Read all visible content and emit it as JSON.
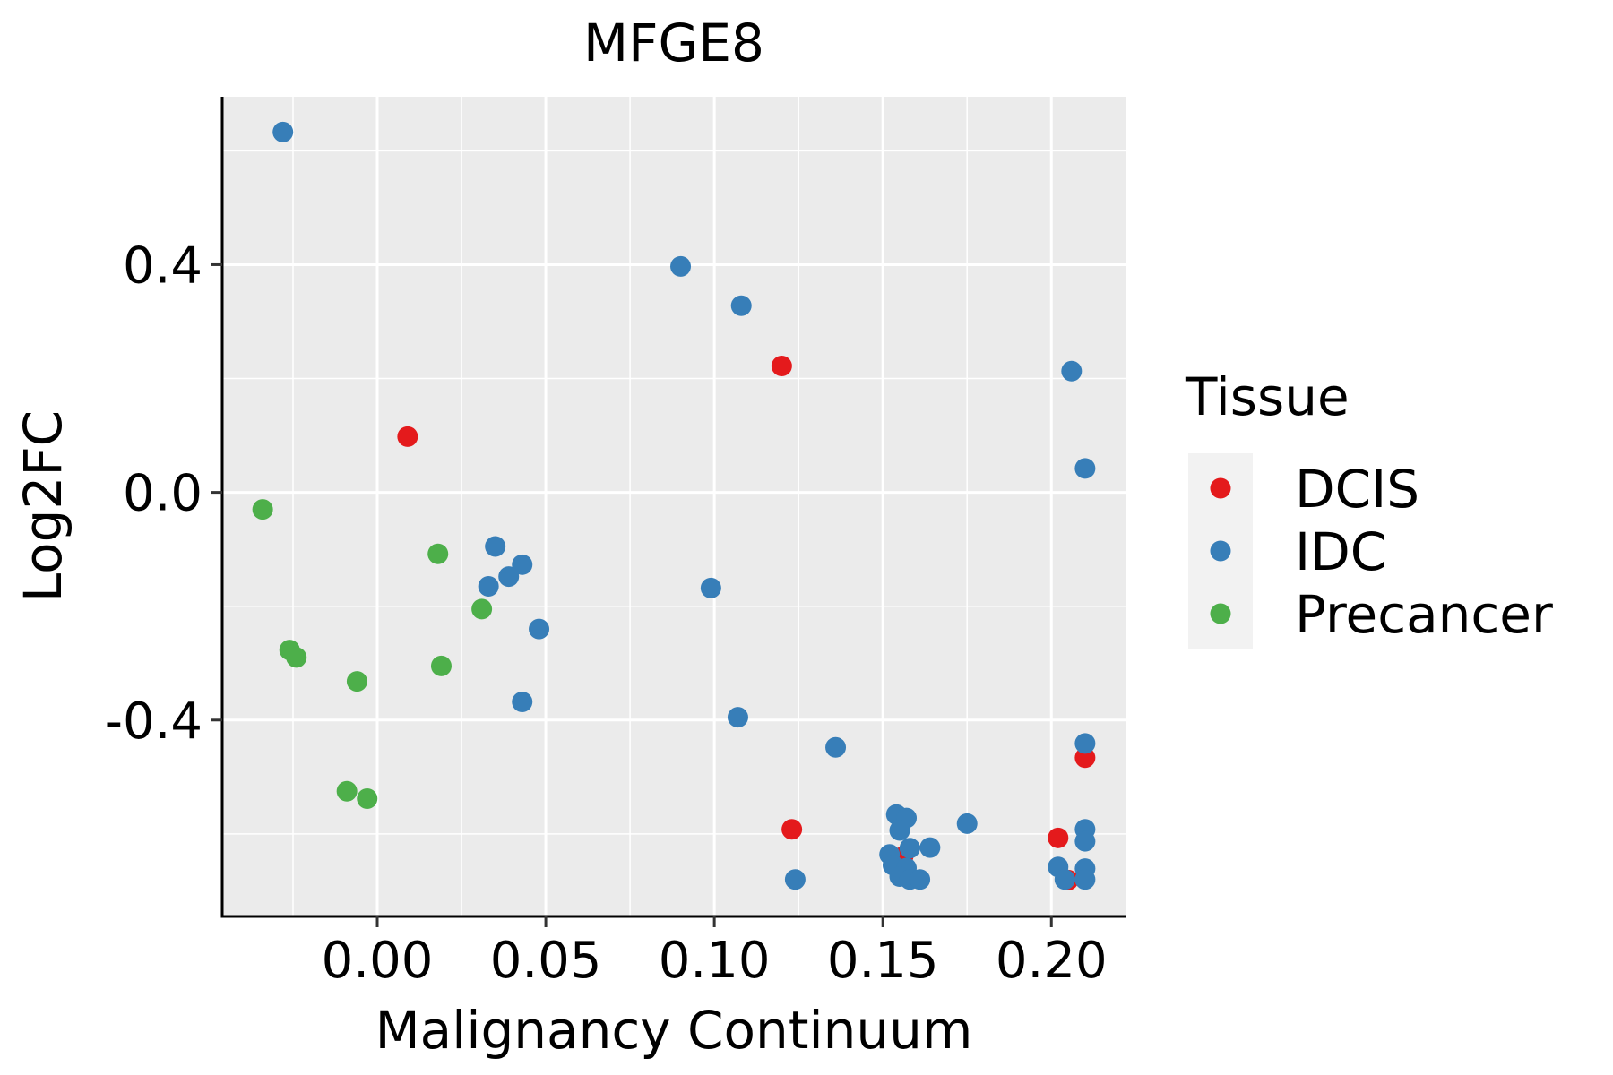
{
  "chart_data": {
    "type": "scatter",
    "title": "MFGE8",
    "xlabel": "Malignancy Continuum",
    "ylabel": "Log2FC",
    "xlim": [
      -0.046,
      0.222
    ],
    "ylim": [
      -0.745,
      0.695
    ],
    "x_ticks": [
      0.0,
      0.05,
      0.1,
      0.15,
      0.2
    ],
    "x_tick_labels": [
      "0.00",
      "0.05",
      "0.10",
      "0.15",
      "0.20"
    ],
    "y_ticks": [
      -0.4,
      0.0,
      0.4
    ],
    "y_tick_labels": [
      "-0.4",
      "0.0",
      "0.4"
    ],
    "grid": true,
    "legend": {
      "title": "Tissue",
      "position": "right",
      "entries": [
        "DCIS",
        "IDC",
        "Precancer"
      ]
    },
    "series": [
      {
        "name": "DCIS",
        "color": "#E41A1C",
        "points": [
          [
            0.009,
            0.098
          ],
          [
            0.12,
            0.222
          ],
          [
            0.123,
            -0.592
          ],
          [
            0.156,
            -0.64
          ],
          [
            0.202,
            -0.607
          ],
          [
            0.205,
            -0.681
          ],
          [
            0.21,
            -0.466
          ]
        ]
      },
      {
        "name": "IDC",
        "color": "#377EB8",
        "points": [
          [
            -0.028,
            0.633
          ],
          [
            0.09,
            0.397
          ],
          [
            0.108,
            0.328
          ],
          [
            0.206,
            0.213
          ],
          [
            0.21,
            0.042
          ],
          [
            0.035,
            -0.095
          ],
          [
            0.033,
            -0.165
          ],
          [
            0.039,
            -0.148
          ],
          [
            0.043,
            -0.127
          ],
          [
            0.048,
            -0.24
          ],
          [
            0.099,
            -0.168
          ],
          [
            0.043,
            -0.368
          ],
          [
            0.107,
            -0.395
          ],
          [
            0.136,
            -0.448
          ],
          [
            0.21,
            -0.441
          ],
          [
            0.154,
            -0.566
          ],
          [
            0.157,
            -0.572
          ],
          [
            0.155,
            -0.594
          ],
          [
            0.158,
            -0.625
          ],
          [
            0.152,
            -0.636
          ],
          [
            0.164,
            -0.624
          ],
          [
            0.175,
            -0.582
          ],
          [
            0.153,
            -0.655
          ],
          [
            0.157,
            -0.66
          ],
          [
            0.155,
            -0.675
          ],
          [
            0.158,
            -0.68
          ],
          [
            0.161,
            -0.68
          ],
          [
            0.124,
            -0.68
          ],
          [
            0.21,
            -0.592
          ],
          [
            0.21,
            -0.613
          ],
          [
            0.202,
            -0.658
          ],
          [
            0.21,
            -0.661
          ],
          [
            0.204,
            -0.68
          ],
          [
            0.21,
            -0.68
          ]
        ]
      },
      {
        "name": "Precancer",
        "color": "#4DAF4A",
        "points": [
          [
            -0.034,
            -0.03
          ],
          [
            0.018,
            -0.108
          ],
          [
            0.031,
            -0.205
          ],
          [
            -0.026,
            -0.277
          ],
          [
            -0.024,
            -0.29
          ],
          [
            0.019,
            -0.305
          ],
          [
            -0.006,
            -0.332
          ],
          [
            -0.009,
            -0.525
          ],
          [
            -0.003,
            -0.538
          ]
        ]
      }
    ]
  }
}
